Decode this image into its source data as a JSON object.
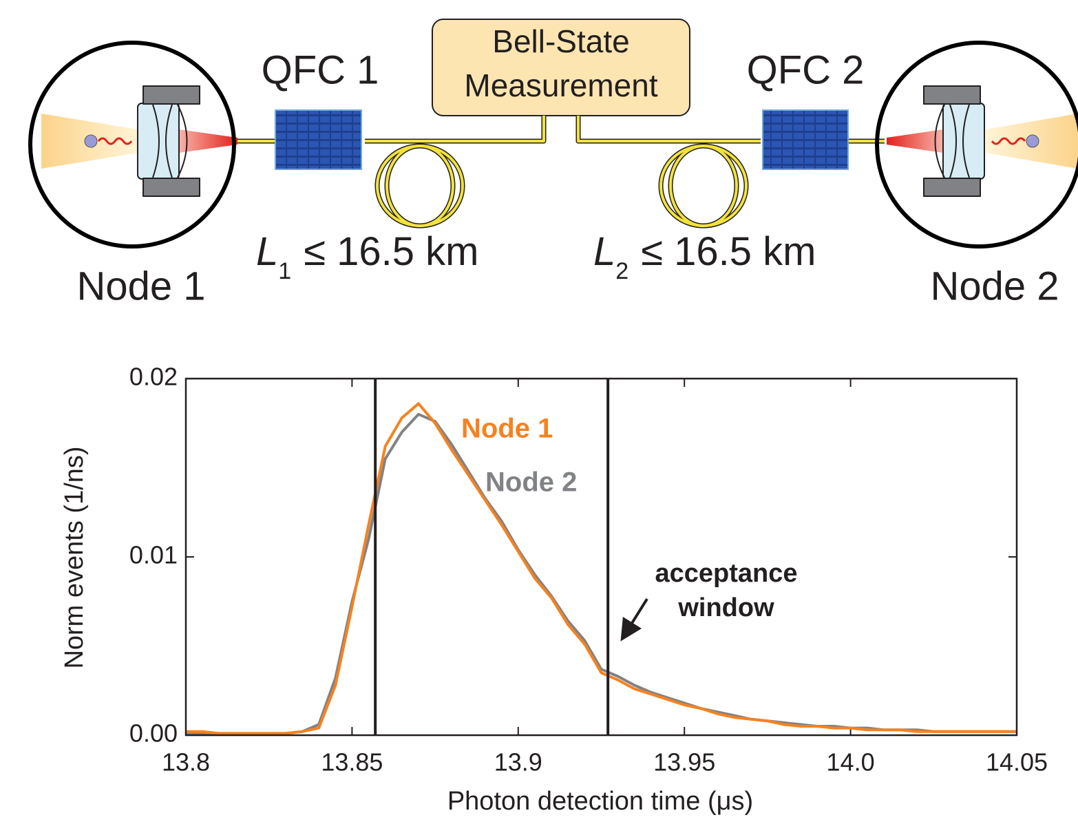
{
  "diagram": {
    "bell_state": [
      "Bell-State",
      "Measurement"
    ],
    "qfc_1": "QFC 1",
    "qfc_2": "QFC 2",
    "length_1": {
      "symbol": "L",
      "subscript": "1",
      "text": "≤ 16.5 km"
    },
    "length_2": {
      "symbol": "L",
      "subscript": "2",
      "text": "≤ 16.5 km"
    },
    "node_1": "Node 1",
    "node_2": "Node 2"
  },
  "chart_data": {
    "type": "line",
    "xlabel": "Photon detection time (μs)",
    "ylabel": "Norm events (1/ns)",
    "xlim": [
      13.8,
      14.05
    ],
    "xticks": [
      13.8,
      13.85,
      13.9,
      13.95,
      {
        "value": 14,
        "label": "14.0"
      },
      14.05
    ],
    "ylim": [
      0,
      0.02
    ],
    "yticks": [
      {
        "value": 0,
        "label": "0.00"
      },
      0.01,
      0.02
    ],
    "window": [
      13.857,
      13.927
    ],
    "annotation": [
      "acceptance",
      "window"
    ],
    "x": [
      13.8,
      13.805,
      13.81,
      13.815,
      13.82,
      13.825,
      13.83,
      13.835,
      13.84,
      13.845,
      13.85,
      13.855,
      13.86,
      13.865,
      13.87,
      13.875,
      13.88,
      13.885,
      13.89,
      13.895,
      13.9,
      13.905,
      13.91,
      13.915,
      13.92,
      13.925,
      13.93,
      13.935,
      13.94,
      13.945,
      13.95,
      13.955,
      13.96,
      13.965,
      13.97,
      13.975,
      13.98,
      13.985,
      13.99,
      13.995,
      14.0,
      14.005,
      14.01,
      14.015,
      14.02,
      14.025,
      14.03,
      14.035,
      14.04,
      14.045,
      14.05
    ],
    "series": [
      {
        "name": "Node 1",
        "color": "#f58220",
        "values": [
          0.0002,
          0.0002,
          0.0001,
          0.0001,
          0.0001,
          0.0001,
          0.0001,
          0.0002,
          0.0004,
          0.0028,
          0.0072,
          0.0118,
          0.0162,
          0.0178,
          0.0186,
          0.0175,
          0.016,
          0.0146,
          0.0132,
          0.0118,
          0.0103,
          0.0088,
          0.0077,
          0.0062,
          0.0051,
          0.0035,
          0.0031,
          0.0026,
          0.0023,
          0.002,
          0.0017,
          0.0015,
          0.0012,
          0.001,
          0.0009,
          0.0008,
          0.0006,
          0.0005,
          0.0005,
          0.0004,
          0.0004,
          0.0003,
          0.0003,
          0.0003,
          0.0002,
          0.0002,
          0.0002,
          0.0002,
          0.0002,
          0.0002,
          0.0002
        ]
      },
      {
        "name": "Node 2",
        "color": "#808285",
        "values": [
          0.0001,
          0.0001,
          0.0001,
          0.0001,
          0.0001,
          0.0001,
          0.0001,
          0.0002,
          0.0006,
          0.0032,
          0.0075,
          0.011,
          0.0155,
          0.017,
          0.018,
          0.0176,
          0.0163,
          0.0148,
          0.0133,
          0.012,
          0.0104,
          0.009,
          0.0078,
          0.0064,
          0.0053,
          0.0037,
          0.0033,
          0.0028,
          0.0024,
          0.0021,
          0.0018,
          0.0015,
          0.0013,
          0.0011,
          0.0009,
          0.0008,
          0.0007,
          0.0006,
          0.0005,
          0.0005,
          0.0004,
          0.0004,
          0.0003,
          0.0003,
          0.0003,
          0.0002,
          0.0002,
          0.0002,
          0.0002,
          0.0002,
          0.0002
        ]
      }
    ]
  }
}
